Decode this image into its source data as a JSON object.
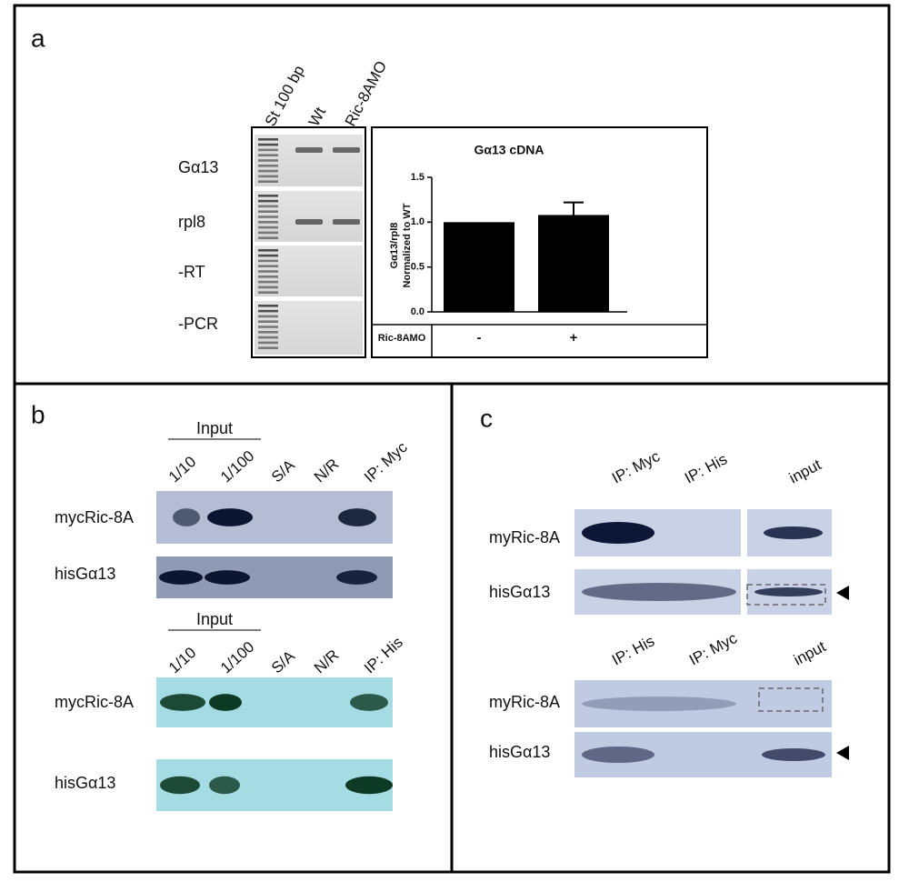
{
  "panels": {
    "a": {
      "label": "a",
      "lanes": [
        "St 100 bp",
        "Wt",
        "Ric-8AMO"
      ],
      "rows": [
        "Gα13",
        "rpl8",
        "-RT",
        "-PCR"
      ],
      "chart_data": {
        "type": "bar",
        "title": "Gα13 cDNA",
        "y_label": [
          "Gα13/rpl8",
          "Normalized to WT"
        ],
        "x_label": "Ric-8AMO",
        "categories": [
          "-",
          "+"
        ],
        "values": [
          1.0,
          1.08
        ],
        "errors": [
          null,
          0.14
        ],
        "color": "#000000",
        "ylim": [
          0,
          1.5
        ],
        "yticks": [
          {
            "value": 0,
            "label": "0.0"
          },
          {
            "value": 0.5,
            "label": "0.5"
          },
          {
            "value": 1,
            "label": "1.0"
          },
          {
            "value": 1.5,
            "label": "1.5"
          }
        ]
      }
    },
    "b": {
      "label": "b",
      "blots": [
        {
          "header": "Input",
          "lanes": [
            "1/10",
            "1/100",
            "S/A",
            "N/R",
            "IP: Myc"
          ],
          "rows": [
            "mycRic-8A",
            "hisGα13"
          ]
        },
        {
          "header": "Input",
          "lanes": [
            "1/10",
            "1/100",
            "S/A",
            "N/R",
            "IP: His"
          ],
          "rows": [
            "mycRic-8A",
            "hisGα13"
          ]
        }
      ]
    },
    "c": {
      "label": "c",
      "blots": [
        {
          "lanes": [
            "IP: Myc",
            "IP: His",
            "input"
          ],
          "rows": [
            "myRic-8A",
            "hisGα13"
          ]
        },
        {
          "lanes": [
            "IP: His",
            "IP: Myc",
            "input"
          ],
          "rows": [
            "myRic-8A",
            "hisGα13"
          ]
        }
      ]
    }
  }
}
